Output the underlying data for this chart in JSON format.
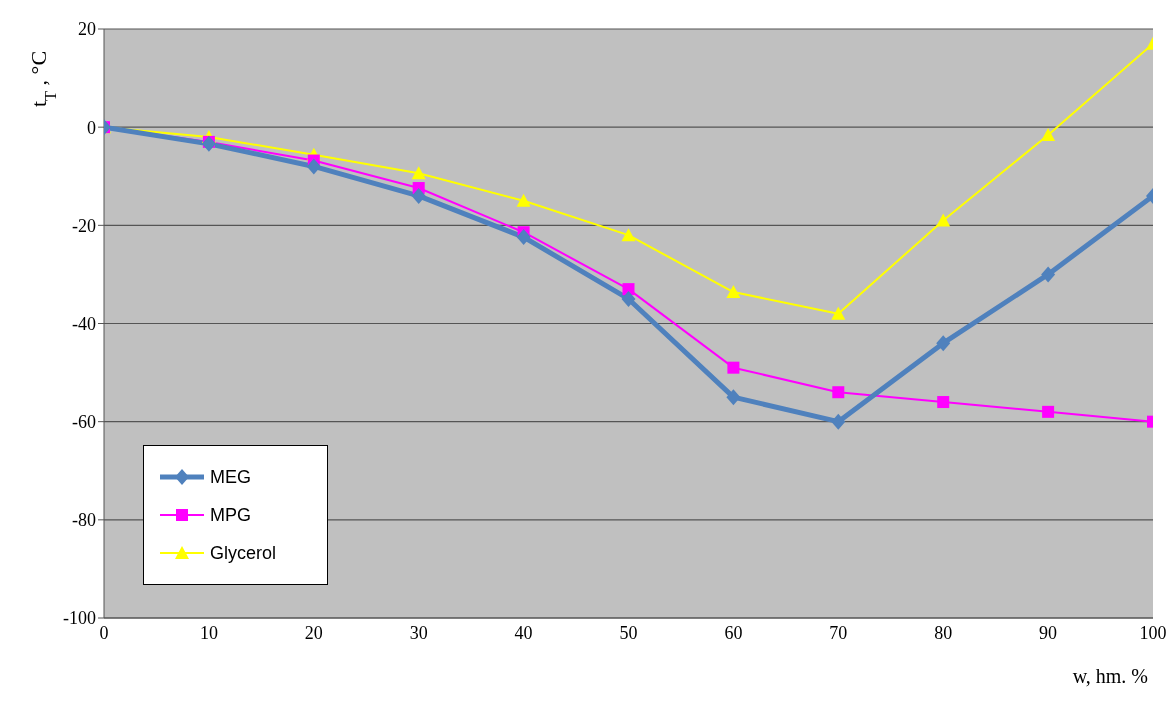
{
  "chart_data": {
    "type": "line",
    "xlabel": "w, hm. %",
    "ylabel": "t$_{T}$ , °C",
    "x": [
      0,
      10,
      20,
      30,
      40,
      50,
      60,
      70,
      80,
      90,
      100
    ],
    "series": [
      {
        "name": "MEG",
        "color": "#4f81bd",
        "marker": "diamond",
        "values": [
          0,
          -3.4,
          -8,
          -14,
          -22.4,
          -35,
          -55,
          -60,
          -44,
          -30,
          -14
        ]
      },
      {
        "name": "MPG",
        "color": "#ff00ff",
        "marker": "square",
        "values": [
          0,
          -3,
          -6.8,
          -12.4,
          -21.4,
          -33,
          -49,
          -54,
          -56,
          -58,
          -60
        ]
      },
      {
        "name": "Glycerol",
        "color": "#ffff00",
        "marker": "triangle",
        "values": [
          0,
          -2,
          -5.6,
          -9.4,
          -15,
          -22,
          -33.6,
          -38,
          -19,
          -1.6,
          17
        ]
      }
    ],
    "xlim": [
      0,
      100
    ],
    "xticks": [
      0,
      10,
      20,
      30,
      40,
      50,
      60,
      70,
      80,
      90,
      100
    ],
    "ylim": [
      -100,
      20
    ],
    "yticks": [
      -100,
      -80,
      -60,
      -40,
      -20,
      0,
      20
    ],
    "grid": "y",
    "legend": "bottom left",
    "line_style": "solid"
  }
}
